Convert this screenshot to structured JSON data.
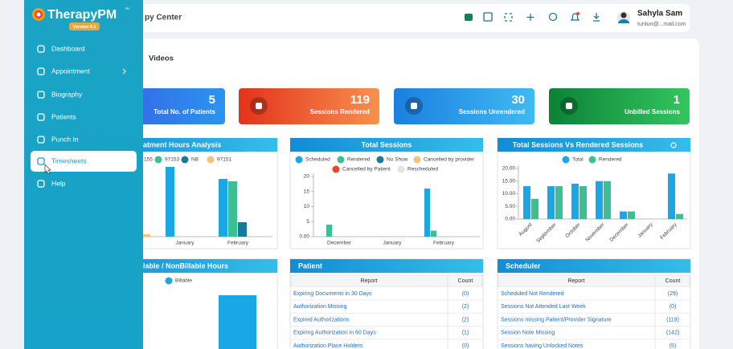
{
  "sidebar": {
    "logo": "TherapyPM",
    "trademark": "™",
    "version": "Version 6.2",
    "menu": [
      "Dashboard",
      "Appointment",
      "Biography",
      "Patients",
      "Punch In",
      "Timesheets",
      "Help"
    ],
    "active": 5
  },
  "header": {
    "title": "py Center",
    "user_name": "Sahyla Sam",
    "user_email": "tuntun@...mail.com"
  },
  "tab": "Videos",
  "stats": [
    {
      "value": 5,
      "label": "Total No. of Patients",
      "colors": [
        "#3b55e6",
        "#2a95ee"
      ]
    },
    {
      "value": 119,
      "label": "Sessions Rendered",
      "colors": [
        "#e4321c",
        "#f8904f"
      ]
    },
    {
      "value": 30,
      "label": "Sessions Unrendered",
      "colors": [
        "#1b7fe0",
        "#3fbaf2"
      ]
    },
    {
      "value": 1,
      "label": "Unbilled Sessions",
      "colors": [
        "#0c8236",
        "#33c65e"
      ]
    }
  ],
  "chart_data": [
    {
      "type": "bar",
      "title": "atment Hours Analysis",
      "categories": [
        null,
        "January",
        "February"
      ],
      "series": [
        {
          "name": "155",
          "color": "#1aa7e6",
          "values": [
            0,
            29,
            24
          ]
        },
        {
          "name": "97153",
          "color": "#3dbf94",
          "values": [
            0,
            0,
            23
          ]
        },
        {
          "name": "NB",
          "color": "#19799b",
          "values": [
            0,
            0,
            6
          ]
        },
        {
          "name": "97151",
          "color": "#f6c27a",
          "values": [
            1,
            0,
            0
          ]
        }
      ]
    },
    {
      "type": "bar",
      "title": "Total Sessions",
      "categories": [
        "December",
        "January",
        "February"
      ],
      "series": [
        {
          "name": "Scheduled",
          "color": "#1aa7e6",
          "values": [
            0,
            0,
            16
          ]
        },
        {
          "name": "Rendered",
          "color": "#3dbf94",
          "values": [
            4,
            0,
            2
          ]
        },
        {
          "name": "No Show",
          "color": "#19799b",
          "values": [
            0,
            0,
            0
          ]
        },
        {
          "name": "Cancelled by provider",
          "color": "#f6c27a",
          "values": [
            0,
            0,
            0
          ]
        },
        {
          "name": "Cancelled by Patient",
          "color": "#e8452c",
          "values": [
            0,
            0,
            0
          ]
        },
        {
          "name": "Rescheduled",
          "color": "#e3e3e3",
          "values": [
            0,
            0,
            0
          ]
        }
      ],
      "ylim": [
        0,
        20
      ],
      "yticks": [
        {
          "value": 0,
          "label": "0.00"
        },
        5,
        10,
        15,
        20
      ]
    },
    {
      "type": "bar",
      "title": "Total Sessions Vs Rendered Sessions",
      "categories": [
        "August",
        "September",
        "October",
        "November",
        "December",
        "January",
        "February"
      ],
      "series": [
        {
          "name": "Total",
          "color": "#1aa7e6",
          "values": [
            13,
            13,
            14,
            15,
            3,
            0,
            18
          ]
        },
        {
          "name": "Rendered",
          "color": "#3dbf94",
          "values": [
            8,
            13,
            13,
            15,
            3,
            0,
            2
          ]
        }
      ],
      "ylim": [
        0,
        20
      ],
      "yticks": [
        {
          "value": 0,
          "label": "0.00"
        },
        {
          "value": 5,
          "label": "5.00"
        },
        {
          "value": 10,
          "label": "10.00"
        },
        {
          "value": 15,
          "label": "15.00"
        },
        {
          "value": 20,
          "label": "20.00"
        }
      ]
    },
    {
      "type": "bar",
      "title": "lable / NonBillable Hours",
      "categories": [
        null
      ],
      "series": [
        {
          "name": "Billable",
          "color": "#1aa7e6",
          "values": [
            24
          ]
        }
      ]
    }
  ],
  "tables": [
    {
      "title": "Patient",
      "columns": [
        "Report",
        "Count"
      ],
      "rows": [
        [
          "Expiring Documents in 30 Days",
          "(0)"
        ],
        [
          "Authorization Missing",
          "(2)"
        ],
        [
          "Expired Authorizations",
          "(2)"
        ],
        [
          "Expiring Authorization in 60 Days",
          "(1)"
        ],
        [
          "Authorization Place Holders",
          "(0)"
        ]
      ]
    },
    {
      "title": "Scheduler",
      "columns": [
        "Report",
        "Count"
      ],
      "rows": [
        [
          "Scheduled Not Rendered",
          "(29)"
        ],
        [
          "Sessions Not Attended Last Week",
          "(0)"
        ],
        [
          "Sessions missing Patient/Provider Signature",
          "(119)"
        ],
        [
          "Session Note Missing",
          "(142)"
        ],
        [
          "Sessions having Unlocked Notes",
          "(5)"
        ]
      ]
    }
  ]
}
